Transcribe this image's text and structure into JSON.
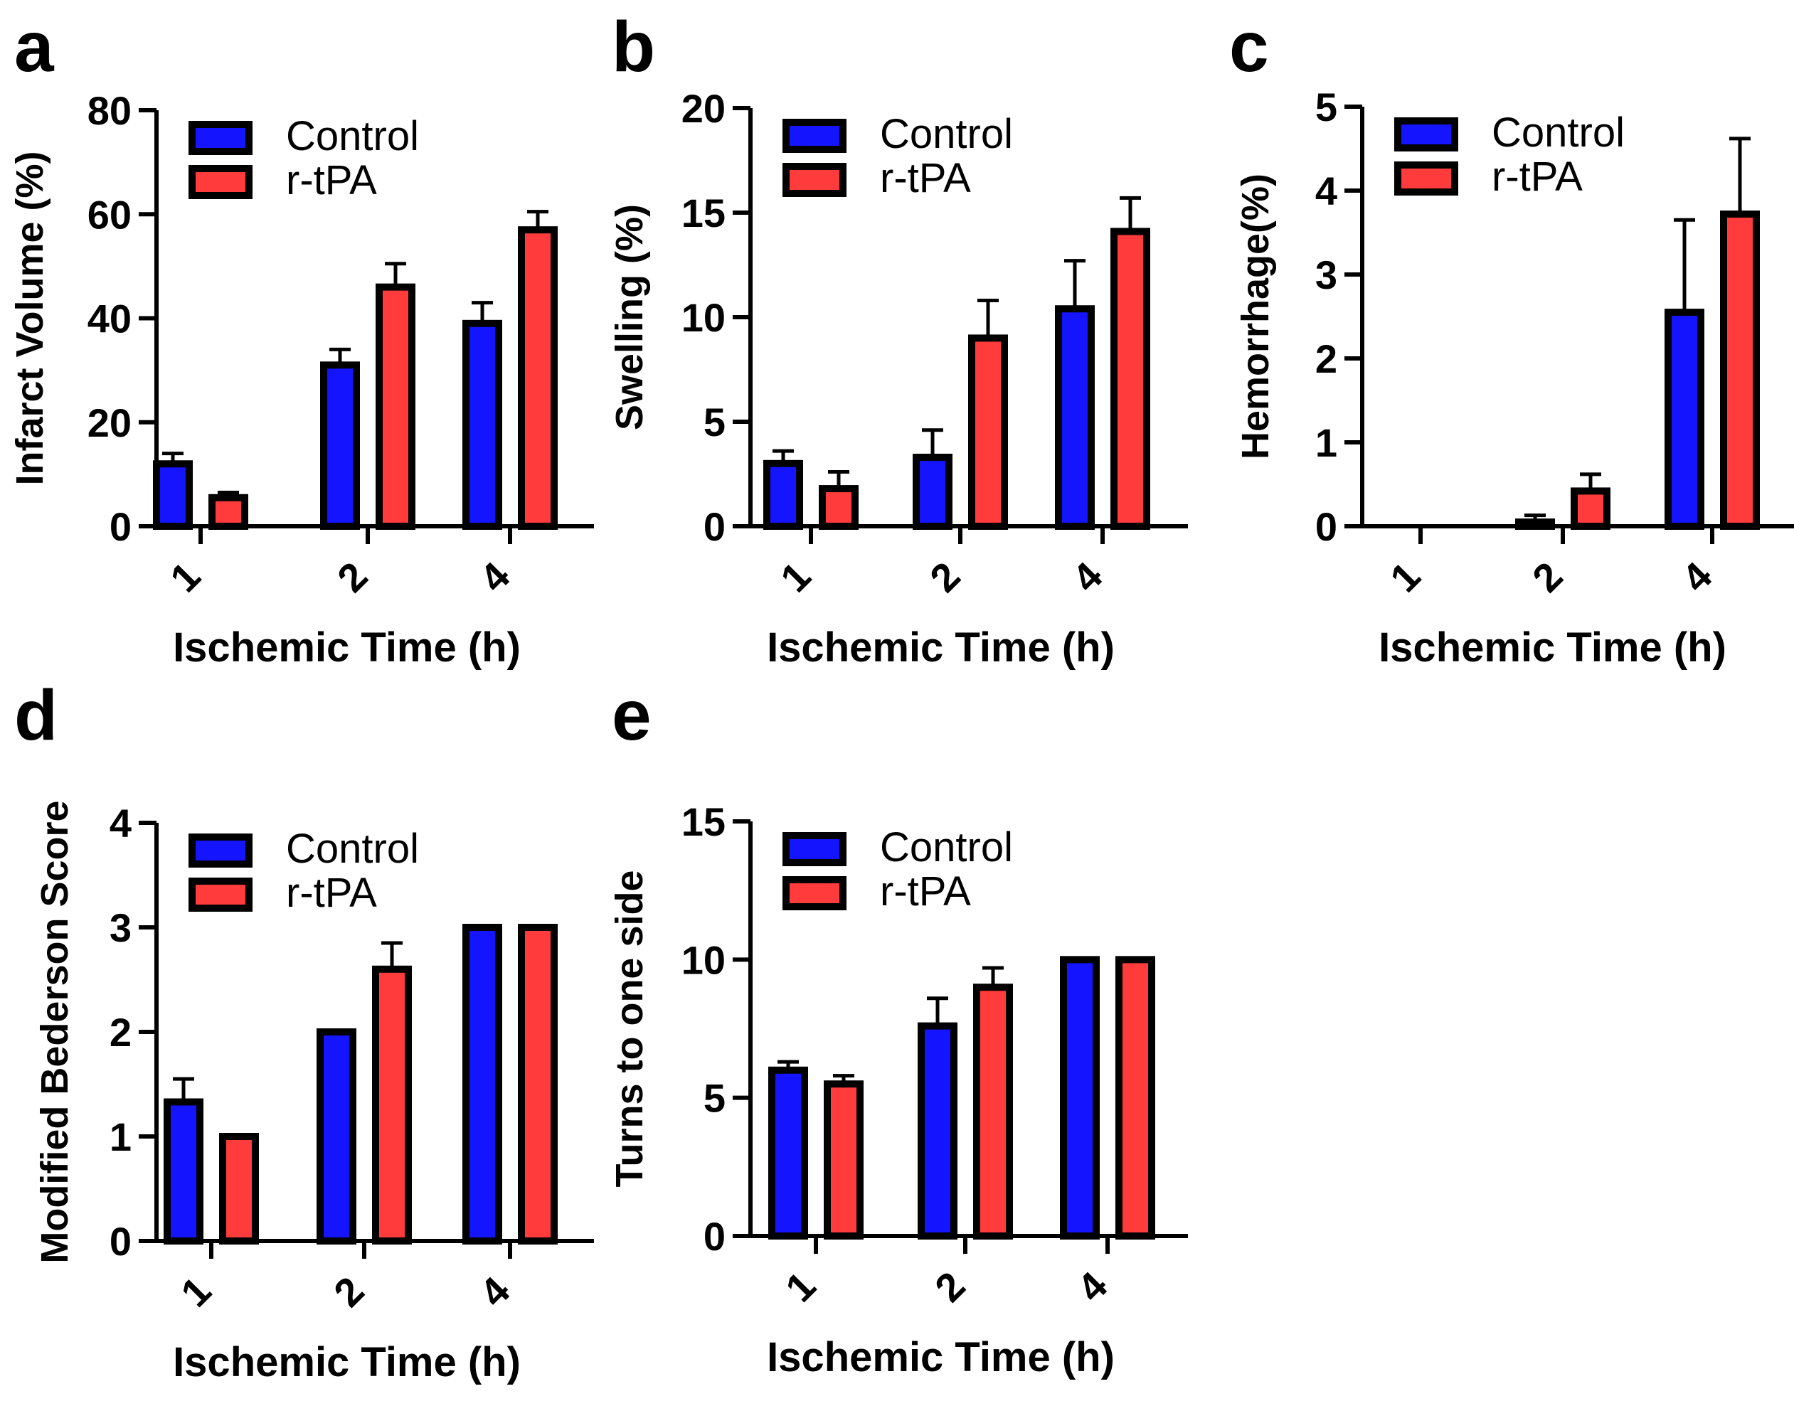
{
  "figure": {
    "colors": {
      "control": "#1414ff",
      "rtpa": "#ff3b3b",
      "axis": "#000000",
      "background": "#ffffff"
    }
  },
  "chart_data": [
    {
      "panel": "a",
      "type": "bar",
      "title": "",
      "xlabel": "Ischemic Time (h)",
      "ylabel": "Infarct Volume (%)",
      "categories": [
        "1",
        "2",
        "4"
      ],
      "ylim": [
        0,
        80
      ],
      "yticks": [
        0,
        20,
        40,
        60,
        80
      ],
      "legend_position": "top-left",
      "series": [
        {
          "name": "Control",
          "values": [
            12,
            31,
            39
          ],
          "errors": [
            2,
            3,
            4
          ]
        },
        {
          "name": "r-tPA",
          "values": [
            5.5,
            46,
            57
          ],
          "errors": [
            1,
            4.5,
            3.5
          ]
        }
      ]
    },
    {
      "panel": "b",
      "type": "bar",
      "title": "",
      "xlabel": "Ischemic Time (h)",
      "ylabel": "Swelling (%)",
      "categories": [
        "1",
        "2",
        "4"
      ],
      "ylim": [
        0,
        20
      ],
      "yticks": [
        0,
        5,
        10,
        15,
        20
      ],
      "legend_position": "top-left",
      "series": [
        {
          "name": "Control",
          "values": [
            3,
            3.3,
            10.4
          ],
          "errors": [
            0.6,
            1.3,
            2.3
          ]
        },
        {
          "name": "r-tPA",
          "values": [
            1.8,
            9,
            14.1
          ],
          "errors": [
            0.8,
            1.8,
            1.6
          ]
        }
      ]
    },
    {
      "panel": "c",
      "type": "bar",
      "title": "",
      "xlabel": "Ischemic Time (h)",
      "ylabel": "Hemorrhage(%)",
      "categories": [
        "1",
        "2",
        "4"
      ],
      "ylim": [
        0,
        5
      ],
      "yticks": [
        0,
        1,
        2,
        3,
        4,
        5
      ],
      "legend_position": "top-left",
      "series": [
        {
          "name": "Control",
          "values": [
            0,
            0.05,
            2.55
          ],
          "errors": [
            0,
            0.08,
            1.1
          ]
        },
        {
          "name": "r-tPA",
          "values": [
            0,
            0.42,
            3.72
          ],
          "errors": [
            0,
            0.2,
            0.9
          ]
        }
      ]
    },
    {
      "panel": "d",
      "type": "bar",
      "title": "",
      "xlabel": "Ischemic Time (h)",
      "ylabel": "Modified Bederson Score",
      "categories": [
        "1",
        "2",
        "4"
      ],
      "ylim": [
        0,
        4
      ],
      "yticks": [
        0,
        1,
        2,
        3,
        4
      ],
      "legend_position": "top-left",
      "series": [
        {
          "name": "Control",
          "values": [
            1.33,
            2,
            3
          ],
          "errors": [
            0.22,
            0,
            0
          ]
        },
        {
          "name": "r-tPA",
          "values": [
            1,
            2.6,
            3
          ],
          "errors": [
            0,
            0.25,
            0
          ]
        }
      ]
    },
    {
      "panel": "e",
      "type": "bar",
      "title": "",
      "xlabel": "Ischemic Time (h)",
      "ylabel": "Turns to one side",
      "categories": [
        "1",
        "2",
        "4"
      ],
      "ylim": [
        0,
        15
      ],
      "yticks": [
        0,
        5,
        10,
        15
      ],
      "legend_position": "top-left",
      "series": [
        {
          "name": "Control",
          "values": [
            6,
            7.6,
            10
          ],
          "errors": [
            0.3,
            1,
            0
          ]
        },
        {
          "name": "r-tPA",
          "values": [
            5.5,
            9,
            10
          ],
          "errors": [
            0.3,
            0.7,
            0
          ]
        }
      ]
    }
  ]
}
